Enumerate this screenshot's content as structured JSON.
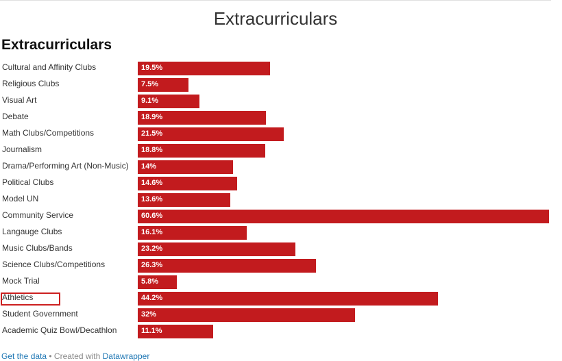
{
  "header": {
    "title": "Extracurriculars"
  },
  "chart_data": {
    "type": "bar",
    "orientation": "horizontal",
    "title": "Extracurriculars",
    "bar_color": "#c21b1e",
    "highlight_color": "#cc1f1f",
    "highlighted_category": "Athletics",
    "xlim": [
      0,
      60.6
    ],
    "categories": [
      "Cultural and Affinity Clubs",
      "Religious Clubs",
      "Visual Art",
      "Debate",
      "Math Clubs/Competitions",
      "Journalism",
      "Drama/Performing Art (Non-Music)",
      "Political Clubs",
      "Model UN",
      "Community Service",
      "Langauge Clubs",
      "Music Clubs/Bands",
      "Science Clubs/Competitions",
      "Mock Trial",
      "Athletics",
      "Student Government",
      "Academic Quiz Bowl/Decathlon"
    ],
    "values": [
      19.5,
      7.5,
      9.1,
      18.9,
      21.5,
      18.8,
      14,
      14.6,
      13.6,
      60.6,
      16.1,
      23.2,
      26.3,
      5.8,
      44.2,
      32,
      11.1
    ],
    "value_labels": [
      "19.5%",
      "7.5%",
      "9.1%",
      "18.9%",
      "21.5%",
      "18.8%",
      "14%",
      "14.6%",
      "13.6%",
      "60.6%",
      "16.1%",
      "23.2%",
      "26.3%",
      "5.8%",
      "44.2%",
      "32%",
      "11.1%"
    ]
  },
  "footer": {
    "data_link": "Get the data",
    "separator": " • Created with ",
    "tool_link": "Datawrapper"
  }
}
